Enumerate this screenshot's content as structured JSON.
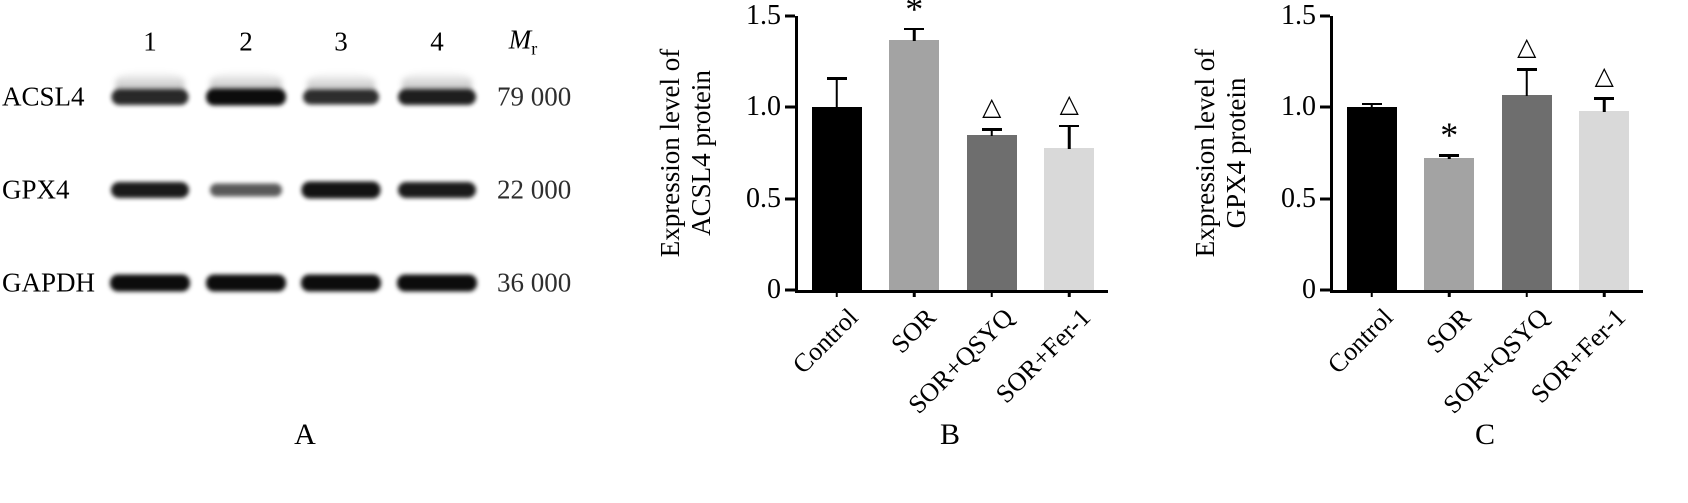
{
  "panel_a": {
    "label": "A",
    "lane_headers": [
      "1",
      "2",
      "3",
      "4"
    ],
    "mr_label": {
      "main": "M",
      "sub": "r"
    },
    "rows": [
      {
        "protein": "ACSL4",
        "mw": "79 000",
        "band_intensities": [
          0.82,
          1.0,
          0.78,
          0.88
        ],
        "smear": true
      },
      {
        "protein": "GPX4",
        "mw": "22 000",
        "band_intensities": [
          0.9,
          0.5,
          0.95,
          0.9
        ],
        "smear": false
      },
      {
        "protein": "GAPDH",
        "mw": "36 000",
        "band_intensities": [
          1.0,
          1.0,
          1.0,
          1.0
        ],
        "smear": false
      }
    ]
  },
  "chart_data": [
    {
      "type": "bar",
      "panel": "B",
      "title": "",
      "ylabel_lines": [
        "Expression level of",
        "ACSL4 protein"
      ],
      "xlabel": "",
      "categories": [
        "Control",
        "SOR",
        "SOR+QSYQ",
        "SOR+Fer-1"
      ],
      "values": [
        1.0,
        1.37,
        0.85,
        0.78
      ],
      "errors": [
        0.17,
        0.07,
        0.04,
        0.13
      ],
      "annotations": [
        "",
        "*",
        "△",
        "△"
      ],
      "bar_colors": [
        "#000000",
        "#a3a3a3",
        "#6e6e6e",
        "#d9d9d9"
      ],
      "ylim": [
        0,
        1.5
      ],
      "yticks": [
        0,
        0.5,
        1.0,
        1.5
      ],
      "ytick_labels": [
        "0",
        "0.5",
        "1.0",
        "1.5"
      ],
      "legend": "none",
      "grid": false
    },
    {
      "type": "bar",
      "panel": "C",
      "title": "",
      "ylabel_lines": [
        "Expression level of",
        "GPX4 protein"
      ],
      "xlabel": "",
      "categories": [
        "Control",
        "SOR",
        "SOR+QSYQ",
        "SOR+Fer-1"
      ],
      "values": [
        1.0,
        0.72,
        1.07,
        0.98
      ],
      "errors": [
        0.03,
        0.03,
        0.15,
        0.08
      ],
      "annotations": [
        "",
        "*",
        "△",
        "△"
      ],
      "bar_colors": [
        "#000000",
        "#a3a3a3",
        "#6e6e6e",
        "#d9d9d9"
      ],
      "ylim": [
        0,
        1.5
      ],
      "yticks": [
        0,
        0.5,
        1.0,
        1.5
      ],
      "ytick_labels": [
        "0",
        "0.5",
        "1.0",
        "1.5"
      ],
      "legend": "none",
      "grid": false
    }
  ]
}
